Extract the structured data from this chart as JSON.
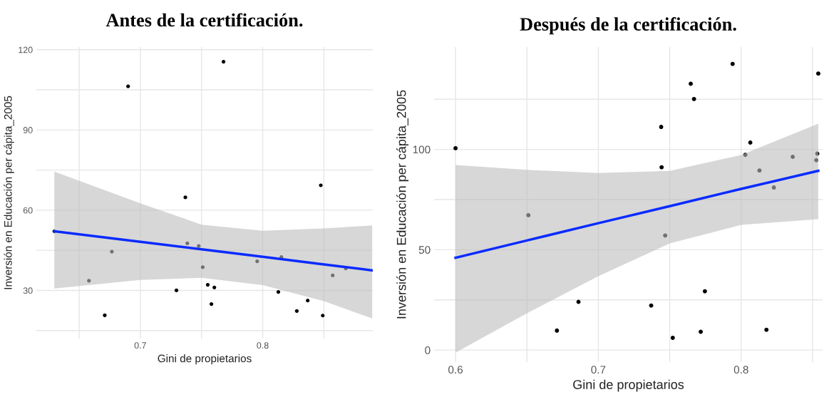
{
  "chart_data": [
    {
      "type": "scatter",
      "title": "Antes de la certificación.",
      "xlabel": "Gini de propietarios",
      "ylabel": "Inversión en Educación per cápita_2005",
      "xlim": [
        0.615,
        0.89
      ],
      "ylim": [
        12,
        121
      ],
      "xticks": [
        {
          "value": 0.65,
          "label": null
        },
        0.7,
        {
          "value": 0.75,
          "label": null
        },
        0.8,
        {
          "value": 0.85,
          "label": null
        }
      ],
      "yticks": [
        {
          "value": 15,
          "label": null
        },
        30,
        {
          "value": 45,
          "label": null
        },
        60,
        {
          "value": 75,
          "label": null
        },
        90,
        {
          "value": 105,
          "label": null
        },
        120
      ],
      "grid": true,
      "series": [
        {
          "marker": "circle",
          "color": "#000000",
          "x": [
            0.6297,
            0.658,
            0.6767,
            0.6709,
            0.69,
            0.7295,
            0.7368,
            0.7384,
            0.7477,
            0.751,
            0.7551,
            0.7605,
            0.7581,
            0.768,
            0.7955,
            0.8128,
            0.8153,
            0.8279,
            0.8368,
            0.8475,
            0.8491,
            0.8572,
            0.8679
          ],
          "values": [
            52.1,
            33.6,
            44.5,
            20.7,
            106.3,
            30.0,
            64.8,
            47.6,
            46.6,
            38.7,
            32.1,
            31.1,
            24.9,
            115.5,
            40.9,
            29.4,
            42.5,
            22.3,
            26.2,
            69.3,
            20.6,
            35.6,
            38.2
          ]
        },
        {
          "type": "line",
          "color": "#0a2bff",
          "x": [
            0.6297,
            0.7,
            0.75,
            0.8,
            0.85,
            0.8895
          ],
          "values": [
            52.1,
            48.2,
            45.4,
            42.6,
            39.7,
            37.5
          ],
          "lower": [
            30.7,
            33.9,
            34.7,
            32.0,
            26.0,
            19.5
          ],
          "upper": [
            74.4,
            62.6,
            54.6,
            52.3,
            53.2,
            54.3
          ]
        }
      ]
    },
    {
      "type": "scatter",
      "title": "Después de la certificación.",
      "xlabel": "Gini de propietarios",
      "ylabel": "Inversión en Educación per cápita_2005",
      "xlim": [
        0.585,
        0.857
      ],
      "ylim": [
        -6,
        151
      ],
      "xticks": [
        0.6,
        {
          "value": 0.65,
          "label": null
        },
        0.7,
        {
          "value": 0.75,
          "label": null
        },
        0.8,
        {
          "value": 0.85,
          "label": null
        }
      ],
      "yticks": [
        0,
        {
          "value": 25,
          "label": null
        },
        50,
        {
          "value": 75,
          "label": null
        },
        100,
        {
          "value": 125,
          "label": null
        }
      ],
      "grid": true,
      "series": [
        {
          "marker": "circle",
          "color": "#000000",
          "x": [
            0.6,
            0.651,
            0.744,
            0.7443,
            0.7647,
            0.767,
            0.794,
            0.8064,
            0.8029,
            0.8128,
            0.8229,
            0.8361,
            0.8526,
            0.8533,
            0.854,
            0.7468,
            0.671,
            0.6861,
            0.737,
            0.7746,
            0.7521,
            0.7717,
            0.8177
          ],
          "values": [
            100.6,
            67.2,
            111.2,
            91.1,
            132.7,
            125.1,
            142.6,
            103.4,
            97.3,
            89.5,
            81.0,
            96.3,
            94.6,
            97.9,
            137.8,
            57.1,
            9.7,
            24.0,
            22.2,
            29.3,
            6.1,
            9.1,
            10.1
          ]
        },
        {
          "type": "line",
          "color": "#0a2bff",
          "x": [
            0.6,
            0.65,
            0.7,
            0.75,
            0.8,
            0.854
          ],
          "values": [
            46.0,
            54.6,
            63.2,
            71.7,
            80.3,
            89.3
          ],
          "lower": [
            -1.3,
            18.3,
            36.8,
            53.1,
            62.4,
            65.2
          ],
          "upper": [
            92.2,
            89.8,
            88.2,
            89.3,
            97.2,
            112.8
          ]
        }
      ]
    }
  ]
}
